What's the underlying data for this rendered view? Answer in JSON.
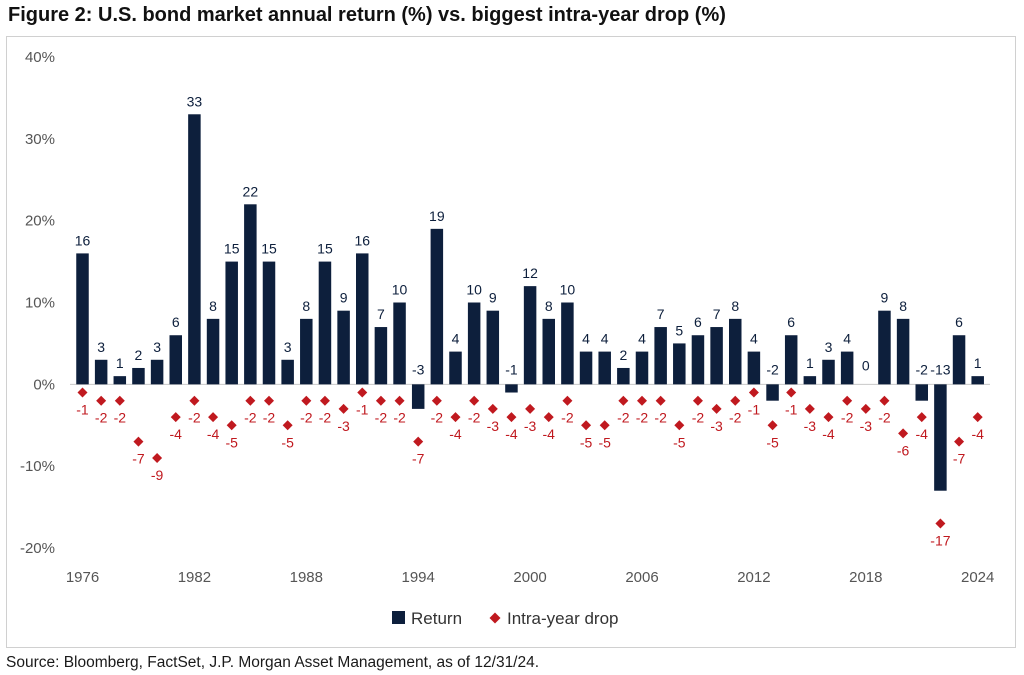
{
  "title": "Figure 2: U.S. bond market annual return (%) vs. biggest intra-year drop (%)",
  "source": "Source: Bloomberg, FactSet, J.P. Morgan Asset Management, as of 12/31/24.",
  "colors": {
    "return": "#0d1f3c",
    "drop": "#c0191f"
  },
  "chart_data": {
    "type": "bar",
    "x": [
      1976,
      1977,
      1978,
      1979,
      1980,
      1981,
      1982,
      1983,
      1984,
      1985,
      1986,
      1987,
      1988,
      1989,
      1990,
      1991,
      1992,
      1993,
      1994,
      1995,
      1996,
      1997,
      1998,
      1999,
      2000,
      2001,
      2002,
      2003,
      2004,
      2005,
      2006,
      2007,
      2008,
      2009,
      2010,
      2011,
      2012,
      2013,
      2014,
      2015,
      2016,
      2017,
      2018,
      2019,
      2020,
      2021,
      2022,
      2023,
      2024
    ],
    "series": [
      {
        "name": "Return",
        "type": "bar",
        "values": [
          16,
          3,
          1,
          2,
          3,
          6,
          33,
          8,
          15,
          22,
          15,
          3,
          8,
          15,
          9,
          16,
          7,
          10,
          -3,
          19,
          4,
          10,
          9,
          -1,
          12,
          8,
          10,
          4,
          4,
          2,
          4,
          7,
          5,
          6,
          7,
          8,
          4,
          -2,
          6,
          1,
          3,
          4,
          0,
          9,
          8,
          -2,
          -13,
          6,
          1
        ]
      },
      {
        "name": "Intra-year drop",
        "type": "scatter",
        "marker": "diamond",
        "values": [
          -1,
          -2,
          -2,
          -7,
          -9,
          -4,
          -2,
          -4,
          -5,
          -2,
          -2,
          -5,
          -2,
          -2,
          -3,
          -1,
          -2,
          -2,
          -7,
          -2,
          -4,
          -2,
          -3,
          -4,
          -3,
          -4,
          -2,
          -5,
          -5,
          -2,
          -2,
          -2,
          -5,
          -2,
          -3,
          -2,
          -1,
          -5,
          -1,
          -3,
          -4,
          -2,
          -3,
          -2,
          -6,
          -4,
          -17,
          -7,
          -4
        ]
      }
    ],
    "y_ticks": [
      "40%",
      "30%",
      "20%",
      "10%",
      "0%",
      "-10%",
      "-20%"
    ],
    "y_tick_values": [
      40,
      30,
      20,
      10,
      0,
      -10,
      -20
    ],
    "x_ticks": [
      "1976",
      "1982",
      "1988",
      "1994",
      "2000",
      "2006",
      "2012",
      "2018",
      "2024"
    ],
    "x_tick_values": [
      1976,
      1982,
      1988,
      1994,
      2000,
      2006,
      2012,
      2018,
      2024
    ],
    "ylim": [
      -20,
      40
    ],
    "grid": false,
    "legend": "bottom-center",
    "legend_labels": [
      "Return",
      "Intra-year drop"
    ]
  }
}
